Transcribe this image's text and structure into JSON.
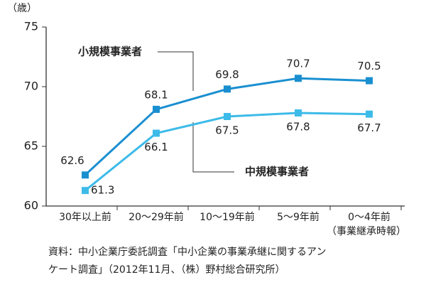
{
  "chart_data": {
    "type": "line",
    "y_label": "（歳）",
    "x_label": "（事業継承時報）",
    "categories": [
      "30年以上前",
      "20～29年前",
      "10～19年前",
      "5～9年前",
      "0～4年前"
    ],
    "series": [
      {
        "name": "小規模事業者",
        "color": "#1a8fd0",
        "values": [
          62.6,
          68.1,
          69.8,
          70.7,
          70.5
        ]
      },
      {
        "name": "中規模事業者",
        "color": "#3dbbe8",
        "values": [
          61.3,
          66.1,
          67.5,
          67.8,
          67.7
        ]
      }
    ],
    "ylim": [
      60,
      75
    ],
    "yticks": [
      60,
      65,
      70,
      75
    ],
    "grid": false,
    "source": [
      "資料：中小企業庁委託調査「中小企業の事業承継に関するアン",
      "ケート調査」（2012年11月、（株）野村総合研究所）"
    ]
  }
}
